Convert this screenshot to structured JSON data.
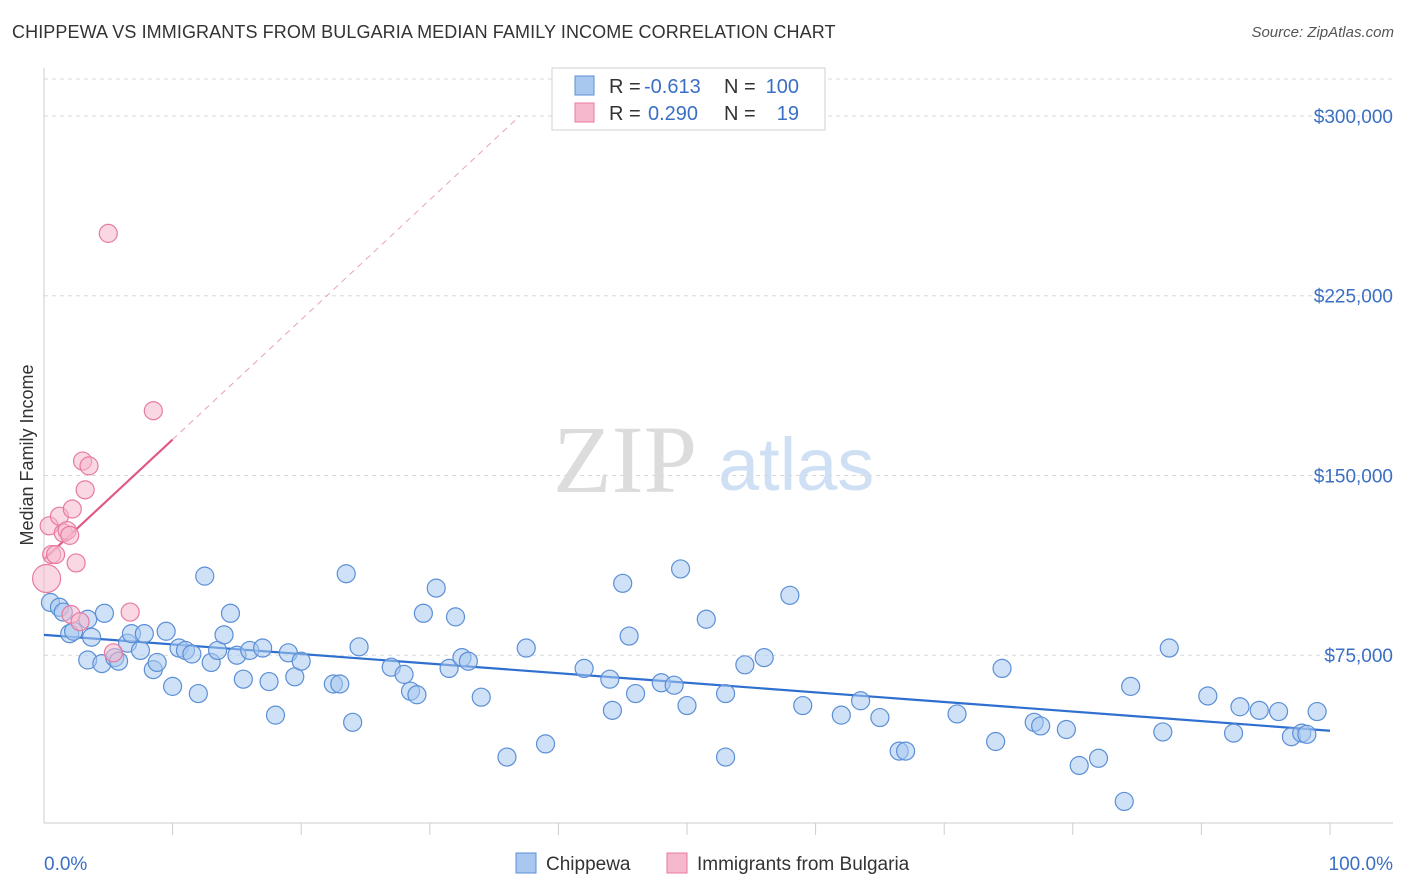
{
  "header": {
    "title": "CHIPPEWA VS IMMIGRANTS FROM BULGARIA MEDIAN FAMILY INCOME CORRELATION CHART",
    "source": "Source: ZipAtlas.com"
  },
  "watermark": {
    "zip": "ZIP",
    "atlas": "atlas"
  },
  "legend": {
    "r_label": "R =",
    "n_label": "N =",
    "rows": [
      {
        "r": "-0.613",
        "n": "100"
      },
      {
        "r": "0.290",
        "n": "19"
      }
    ]
  },
  "colors": {
    "blue_fill": "#a8c8f0",
    "blue_stroke": "#5b8fd6",
    "blue_line": "#2f6fcf",
    "pink_fill": "#f6b8cc",
    "pink_stroke": "#e87a9e",
    "pink_line": "#e05a86",
    "grid": "#d9d9d9",
    "tick_text": "#3a6fc4"
  },
  "chart_data": {
    "type": "scatter",
    "title": "CHIPPEWA VS IMMIGRANTS FROM BULGARIA MEDIAN FAMILY INCOME CORRELATION CHART",
    "xlabel": "",
    "ylabel": "Median Family Income",
    "xlim": [
      0,
      100
    ],
    "ylim": [
      5000,
      320000
    ],
    "x_tick_labels": [
      "0.0%",
      "100.0%"
    ],
    "y_ticks": [
      75000,
      150000,
      225000,
      300000
    ],
    "y_tick_labels": [
      "$75,000",
      "$150,000",
      "$225,000",
      "$300,000"
    ],
    "grid": true,
    "legend_position": "top-center",
    "series": [
      {
        "name": "Chippewa",
        "r": -0.613,
        "n": 100,
        "trend": {
          "x0": 0,
          "y0": 83500,
          "x1": 100,
          "y1": 43500
        },
        "points": [
          [
            0.5,
            97000
          ],
          [
            1.2,
            95000
          ],
          [
            1.5,
            93000
          ],
          [
            2.0,
            84000
          ],
          [
            2.3,
            85000
          ],
          [
            3.4,
            90000
          ],
          [
            3.7,
            82500
          ],
          [
            3.4,
            73000
          ],
          [
            4.5,
            71500
          ],
          [
            4.7,
            92500
          ],
          [
            5.5,
            74000
          ],
          [
            5.8,
            72500
          ],
          [
            6.5,
            80000
          ],
          [
            6.8,
            84000
          ],
          [
            7.5,
            77000
          ],
          [
            7.8,
            84000
          ],
          [
            8.5,
            69000
          ],
          [
            8.8,
            72000
          ],
          [
            9.5,
            85000
          ],
          [
            10.0,
            62000
          ],
          [
            10.5,
            78000
          ],
          [
            11.0,
            77000
          ],
          [
            11.5,
            75500
          ],
          [
            12.0,
            59000
          ],
          [
            12.5,
            108000
          ],
          [
            13.0,
            72000
          ],
          [
            13.5,
            77000
          ],
          [
            14.0,
            83500
          ],
          [
            14.5,
            92500
          ],
          [
            15.0,
            75000
          ],
          [
            15.5,
            65000
          ],
          [
            16.0,
            77000
          ],
          [
            17.0,
            78000
          ],
          [
            17.5,
            64000
          ],
          [
            18.0,
            50000
          ],
          [
            19.0,
            76000
          ],
          [
            19.5,
            66000
          ],
          [
            20.0,
            72500
          ],
          [
            22.5,
            63000
          ],
          [
            23.0,
            63000
          ],
          [
            23.5,
            109000
          ],
          [
            24.0,
            47000
          ],
          [
            24.5,
            78500
          ],
          [
            27.0,
            70000
          ],
          [
            28.0,
            67000
          ],
          [
            28.5,
            60000
          ],
          [
            29.0,
            58500
          ],
          [
            29.5,
            92500
          ],
          [
            30.5,
            103000
          ],
          [
            31.5,
            69500
          ],
          [
            32.0,
            91000
          ],
          [
            32.5,
            74000
          ],
          [
            33.0,
            72500
          ],
          [
            34.0,
            57500
          ],
          [
            36.0,
            32500
          ],
          [
            37.5,
            78000
          ],
          [
            39.0,
            38000
          ],
          [
            42.0,
            69500
          ],
          [
            44.0,
            65000
          ],
          [
            44.2,
            52000
          ],
          [
            45.0,
            105000
          ],
          [
            45.5,
            83000
          ],
          [
            46.0,
            59000
          ],
          [
            48.0,
            63500
          ],
          [
            49.0,
            62500
          ],
          [
            49.5,
            111000
          ],
          [
            50.0,
            54000
          ],
          [
            51.5,
            90000
          ],
          [
            53.0,
            32500
          ],
          [
            53.0,
            59000
          ],
          [
            54.5,
            71000
          ],
          [
            56.0,
            74000
          ],
          [
            58.0,
            100000
          ],
          [
            59.0,
            54000
          ],
          [
            62.0,
            50000
          ],
          [
            63.5,
            56000
          ],
          [
            65.0,
            49000
          ],
          [
            66.5,
            35000
          ],
          [
            67.0,
            35000
          ],
          [
            71.0,
            50500
          ],
          [
            74.0,
            39000
          ],
          [
            74.5,
            69500
          ],
          [
            77.0,
            47000
          ],
          [
            77.5,
            45500
          ],
          [
            79.5,
            44000
          ],
          [
            80.5,
            29000
          ],
          [
            82.0,
            32000
          ],
          [
            84.0,
            14000
          ],
          [
            84.5,
            62000
          ],
          [
            87.0,
            43000
          ],
          [
            87.5,
            78000
          ],
          [
            90.5,
            58000
          ],
          [
            92.5,
            42500
          ],
          [
            93.0,
            53500
          ],
          [
            94.5,
            52000
          ],
          [
            96.0,
            51500
          ],
          [
            97.0,
            41000
          ],
          [
            97.8,
            42500
          ],
          [
            98.2,
            42000
          ],
          [
            99.0,
            51500
          ]
        ]
      },
      {
        "name": "Immigrants from Bulgaria",
        "r": 0.29,
        "n": 19,
        "trend": {
          "x0": 0,
          "y0": 115000,
          "x1": 10,
          "y1": 165000,
          "dash_to_x": 37,
          "dash_to_y": 300000
        },
        "points": [
          [
            0.2,
            107000
          ],
          [
            0.4,
            129000
          ],
          [
            0.6,
            117000
          ],
          [
            0.9,
            117000
          ],
          [
            1.2,
            133000
          ],
          [
            1.5,
            126000
          ],
          [
            1.8,
            127000
          ],
          [
            2.0,
            125000
          ],
          [
            2.1,
            92000
          ],
          [
            2.2,
            136000
          ],
          [
            2.5,
            113500
          ],
          [
            2.8,
            89000
          ],
          [
            3.0,
            156000
          ],
          [
            3.2,
            144000
          ],
          [
            3.5,
            154000
          ],
          [
            5.0,
            251000
          ],
          [
            5.4,
            76000
          ],
          [
            6.7,
            93000
          ],
          [
            8.5,
            177000
          ]
        ]
      }
    ]
  }
}
